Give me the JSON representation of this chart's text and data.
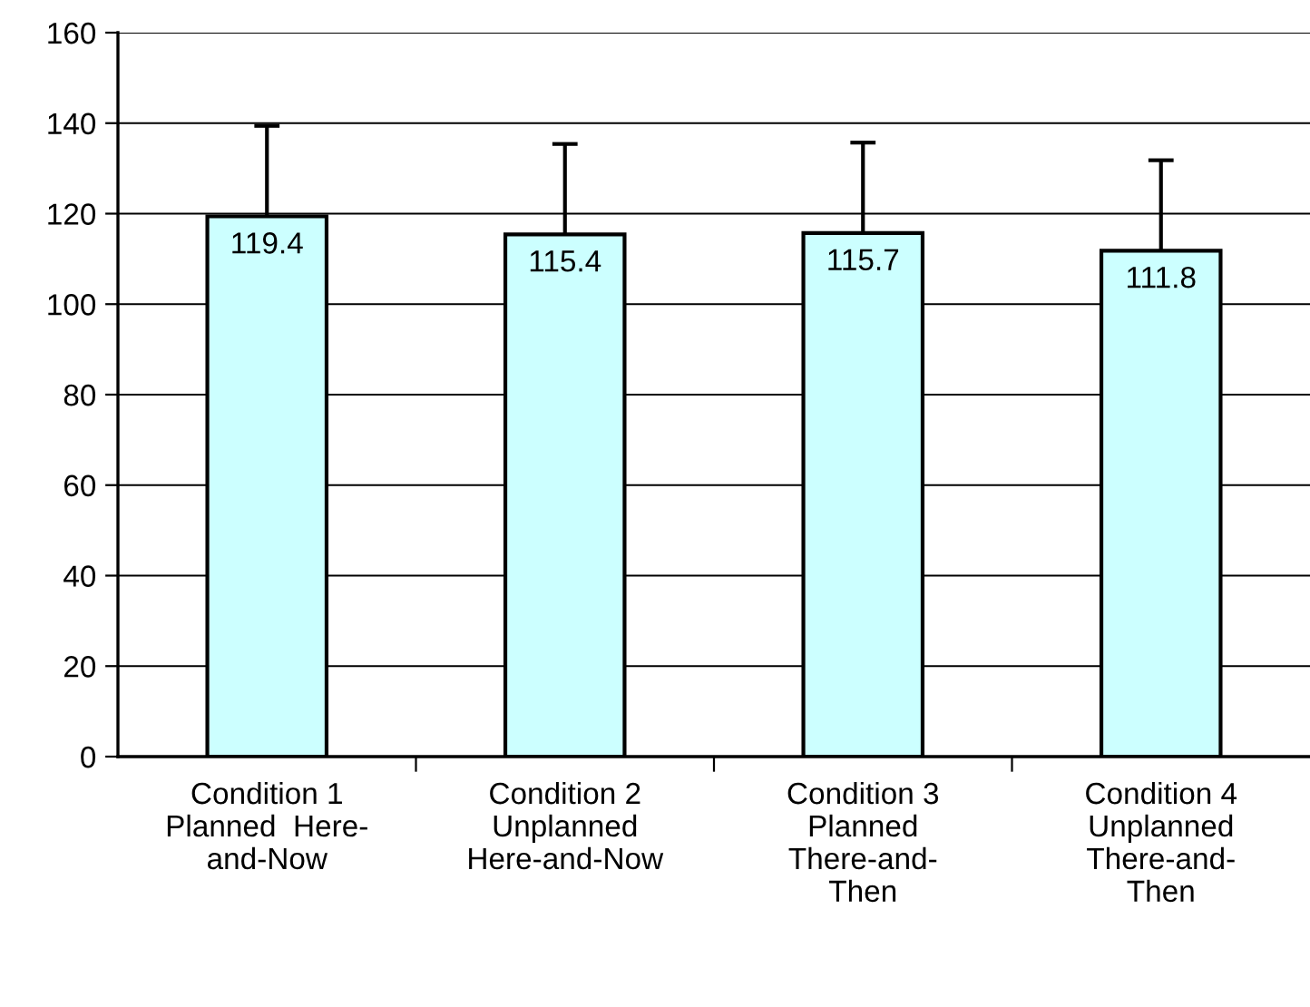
{
  "chart_data": {
    "type": "bar",
    "categories": [
      "Condition 1\nPlanned  Here-\nand-Now",
      "Condition 2\nUnplanned\nHere-and-Now",
      "Condition 3\nPlanned\nThere-and-\nThen",
      "Condition 4\nUnplanned\nThere-and-\nThen"
    ],
    "values": [
      119.4,
      115.4,
      115.7,
      111.8
    ],
    "errors": [
      20,
      20,
      20,
      20
    ],
    "color": "#ccffff",
    "ylim": [
      0,
      160
    ],
    "yticks": [
      0,
      20,
      40,
      60,
      80,
      100,
      120,
      140,
      160
    ],
    "grid": "y",
    "data_labels": true
  }
}
